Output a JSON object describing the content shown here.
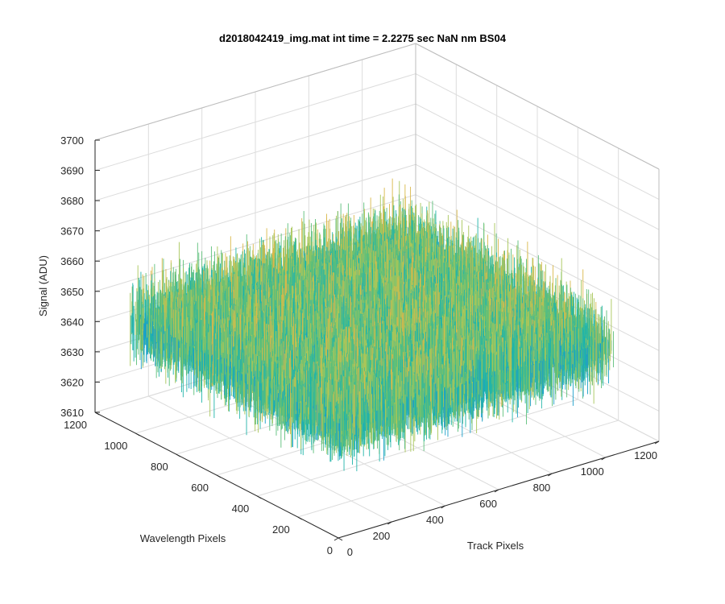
{
  "chart_data": {
    "type": "surface",
    "title": "d2018042419_img.mat int time = 2.2275 sec  NaN nm BS04",
    "xlabel": "Track Pixels",
    "ylabel": "Wavelength Pixels",
    "zlabel": "Signal (ADU)",
    "xlim": [
      0,
      1200
    ],
    "ylim": [
      0,
      1200
    ],
    "zlim": [
      3610,
      3700
    ],
    "x_ticks": [
      0,
      200,
      400,
      600,
      800,
      1000,
      1200
    ],
    "y_ticks": [
      0,
      200,
      400,
      600,
      800,
      1000,
      1200
    ],
    "z_ticks": [
      3610,
      3620,
      3630,
      3640,
      3650,
      3660,
      3670,
      3680,
      3690,
      3700
    ],
    "data_extent": {
      "x": [
        0,
        1024
      ],
      "y": [
        0,
        1024
      ]
    },
    "signal_mean": 3650,
    "signal_spread": [
      3615,
      3695
    ],
    "grid": true,
    "colormap": [
      "#0072bd",
      "#1a9ec9",
      "#21b5a9",
      "#5cbf7a",
      "#a8c65a",
      "#d9b84a",
      "#f0c93b"
    ]
  }
}
